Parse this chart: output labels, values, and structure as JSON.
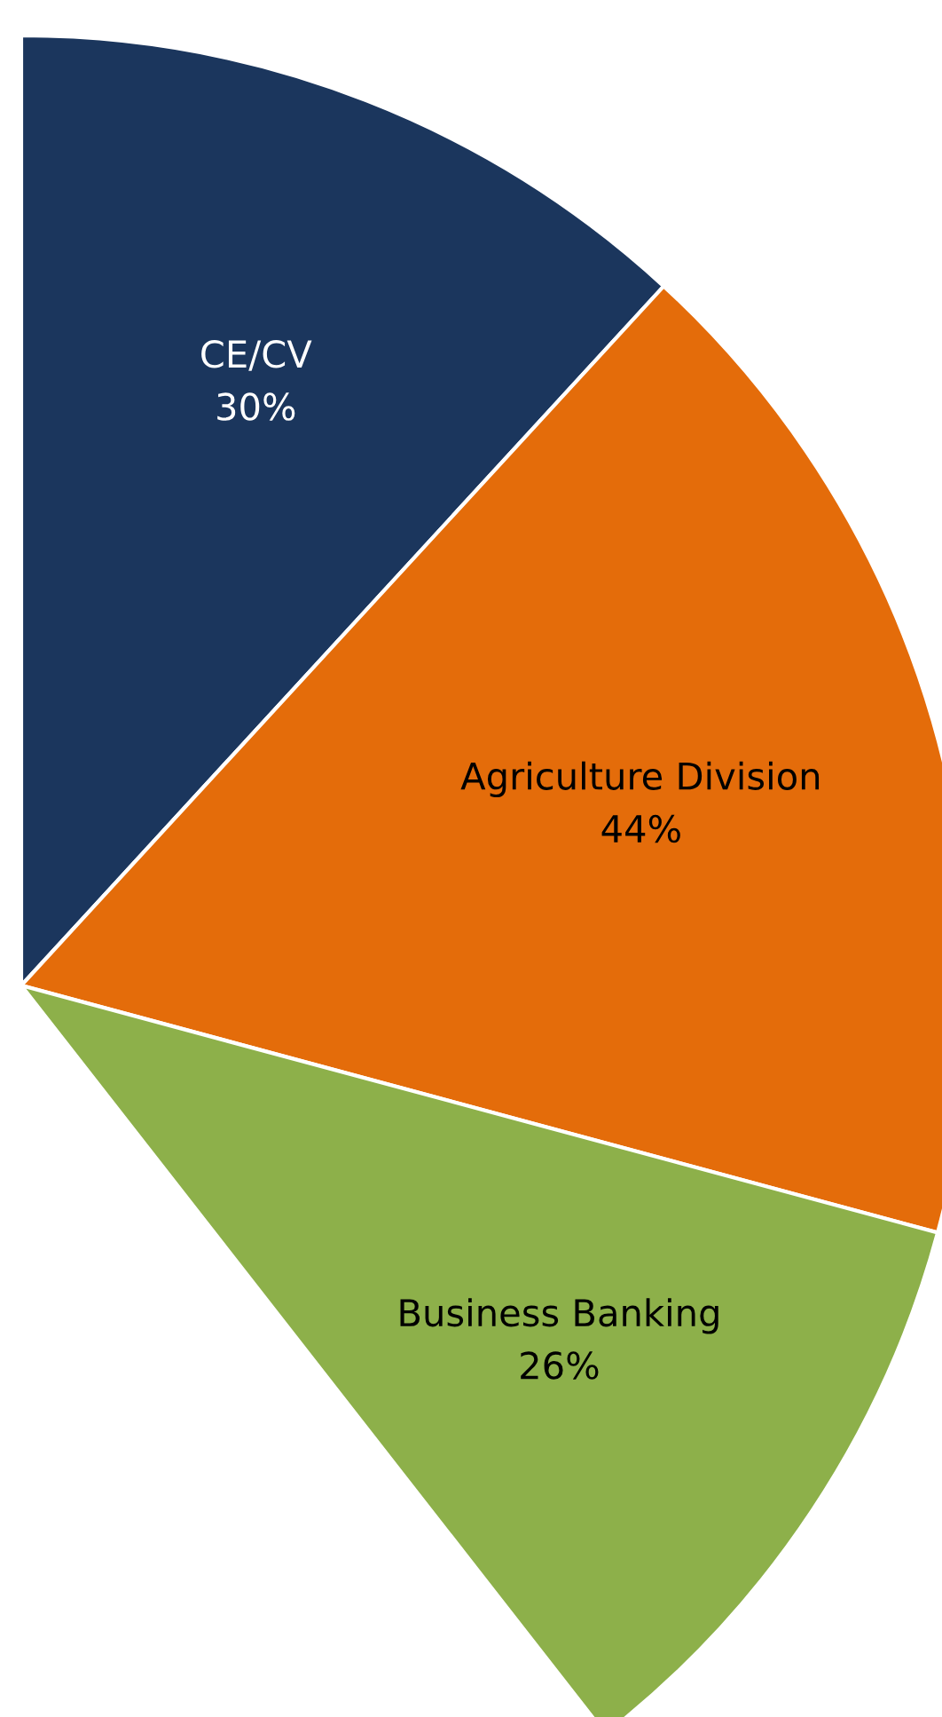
{
  "chart_data": {
    "type": "pie",
    "categories": [
      "CE/CV",
      "Agriculture Division",
      "Business Banking"
    ],
    "values": [
      30,
      44,
      26
    ],
    "colors": [
      "#1b365d",
      "#e46c0a",
      "#8db04a"
    ],
    "value_labels": [
      "30%",
      "44%",
      "26%"
    ]
  }
}
